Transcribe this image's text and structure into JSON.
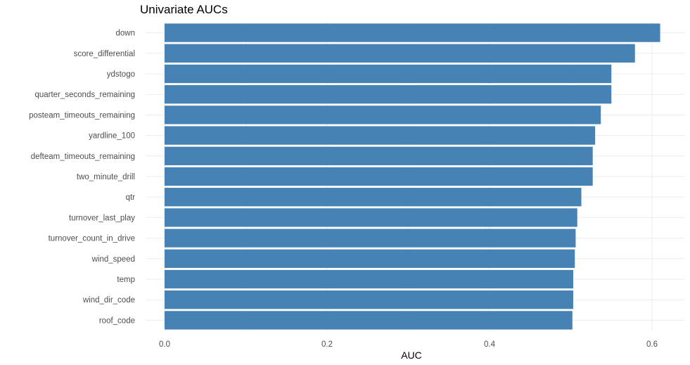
{
  "chart_data": {
    "type": "bar",
    "orientation": "horizontal",
    "title": "Univariate AUCs",
    "xlabel": "AUC",
    "ylabel": "",
    "categories": [
      "down",
      "score_differential",
      "ydstogo",
      "quarter_seconds_remaining",
      "posteam_timeouts_remaining",
      "yardline_100",
      "defteam_timeouts_remaining",
      "two_minute_drill",
      "qtr",
      "turnover_last_play",
      "turnover_count_in_drive",
      "wind_speed",
      "temp",
      "wind_dir_code",
      "roof_code"
    ],
    "values": [
      0.61,
      0.579,
      0.55,
      0.55,
      0.537,
      0.53,
      0.527,
      0.527,
      0.513,
      0.508,
      0.506,
      0.505,
      0.503,
      0.503,
      0.502
    ],
    "xlim": [
      0,
      0.64
    ],
    "xticks": [
      0.0,
      0.2,
      0.4,
      0.6
    ],
    "xtick_labels": [
      "0.0",
      "0.2",
      "0.4",
      "0.6"
    ],
    "bar_color": "#4682B4",
    "grid": true,
    "grid_color": "#ebebeb",
    "legend": "none"
  }
}
